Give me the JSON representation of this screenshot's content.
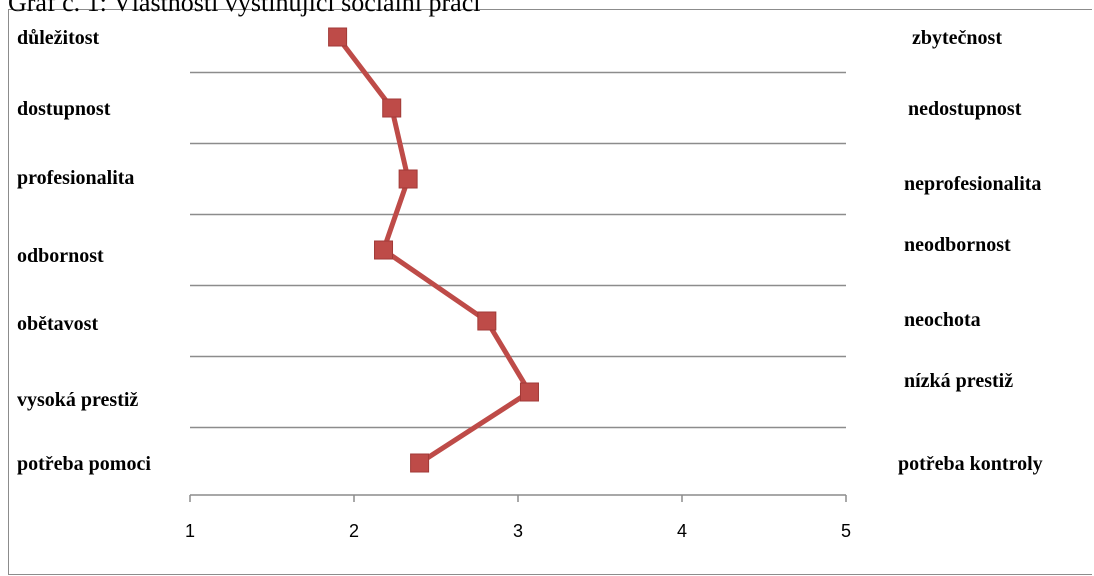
{
  "title": "Graf č. 1: Vlastnosti vystihující sociální práci",
  "chart_data": {
    "type": "line",
    "title": "Graf č. 1: Vlastnosti vystihující sociální práci",
    "categories_left": [
      "důležitost",
      "dostupnost",
      "profesionalita",
      "odbornost",
      "obětavost",
      "vysoká prestiž",
      "potřeba pomoci"
    ],
    "categories_right": [
      "zbytečnost",
      "nedostupnost",
      "neprofesionalita",
      "neodbornost",
      "neochota",
      "nízká prestiž",
      "potřeba kontroly"
    ],
    "values": [
      1.9,
      2.23,
      2.33,
      2.18,
      2.81,
      3.07,
      2.4
    ],
    "xlim": [
      1,
      5
    ],
    "xticks": [
      "1",
      "2",
      "3",
      "4",
      "5"
    ],
    "grid": true,
    "line_color": "#be4b48",
    "marker": "square"
  }
}
